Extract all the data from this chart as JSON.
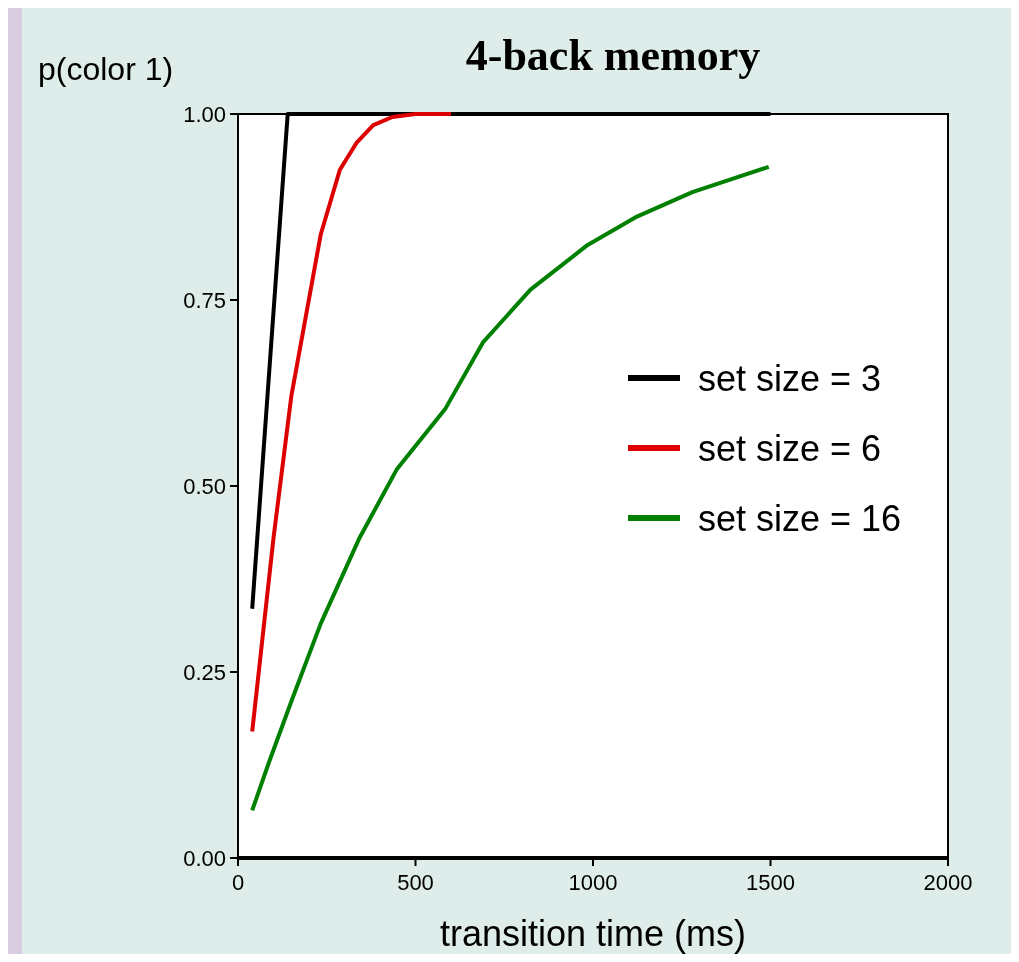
{
  "chart_data": {
    "type": "line",
    "title": "4-back memory",
    "xlabel": "transition time (ms)",
    "ylabel": "p(color 1)",
    "series": [
      {
        "name": "set size = 3",
        "color": "#000000",
        "x": [
          40,
          140,
          200,
          1500
        ],
        "values": [
          0.335,
          1.0,
          1.0,
          1.0
        ]
      },
      {
        "name": "set size = 6",
        "color": "#dd0000",
        "x": [
          40,
          100,
          150,
          233,
          287,
          335,
          381,
          435,
          500,
          600
        ],
        "values": [
          0.17,
          0.43,
          0.62,
          0.838,
          0.925,
          0.962,
          0.985,
          0.996,
          1.0,
          1.0
        ]
      },
      {
        "name": "set size = 16",
        "color": "#008000",
        "x": [
          40,
          86,
          153,
          233,
          341,
          448,
          583,
          690,
          824,
          985,
          1119,
          1280,
          1495
        ],
        "values": [
          0.064,
          0.127,
          0.214,
          0.315,
          0.429,
          0.523,
          0.603,
          0.693,
          0.764,
          0.824,
          0.861,
          0.895,
          0.929
        ]
      }
    ],
    "xlim": [
      0,
      2000
    ],
    "xticks": [
      0,
      500,
      1000,
      1500,
      2000
    ],
    "ylim": [
      0,
      1
    ],
    "yticks": [
      {
        "value": 0,
        "label": "0.00"
      },
      {
        "value": 0.25,
        "label": "0.25"
      },
      {
        "value": 0.5,
        "label": "0.50"
      },
      {
        "value": 0.75,
        "label": "0.75"
      },
      {
        "value": 1,
        "label": "1.00"
      }
    ],
    "grid": false,
    "legend": "right",
    "marker": "none",
    "line_style": "solid"
  }
}
